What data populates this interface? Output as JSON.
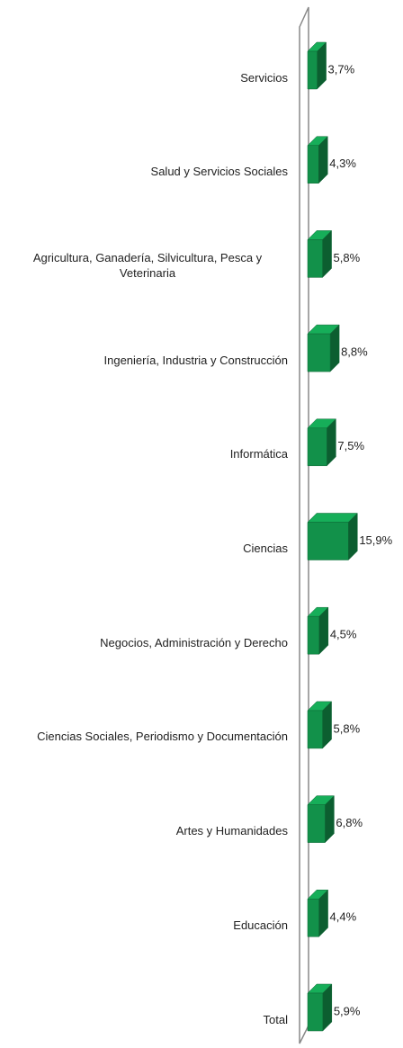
{
  "chart_data": {
    "type": "bar",
    "orientation": "horizontal",
    "three_d": true,
    "categories": [
      "Servicios",
      "Salud y Servicios Sociales",
      "Agricultura, Ganadería, Silvicultura, Pesca y Veterinaria",
      "Ingeniería, Industria y Construcción",
      "Informática",
      "Ciencias",
      "Negocios, Administración y Derecho",
      "Ciencias Sociales, Periodismo y Documentación",
      "Artes y Humanidades",
      "Educación",
      "Total"
    ],
    "values": [
      3.7,
      4.3,
      5.8,
      8.8,
      7.5,
      15.9,
      4.5,
      5.8,
      6.8,
      4.4,
      5.9
    ],
    "value_labels": [
      "3,7%",
      "4,3%",
      "5,8%",
      "8,8%",
      "7,5%",
      "15,9%",
      "4,5%",
      "5,8%",
      "6,8%",
      "4,4%",
      "5,9%"
    ],
    "color": "#12914a"
  }
}
